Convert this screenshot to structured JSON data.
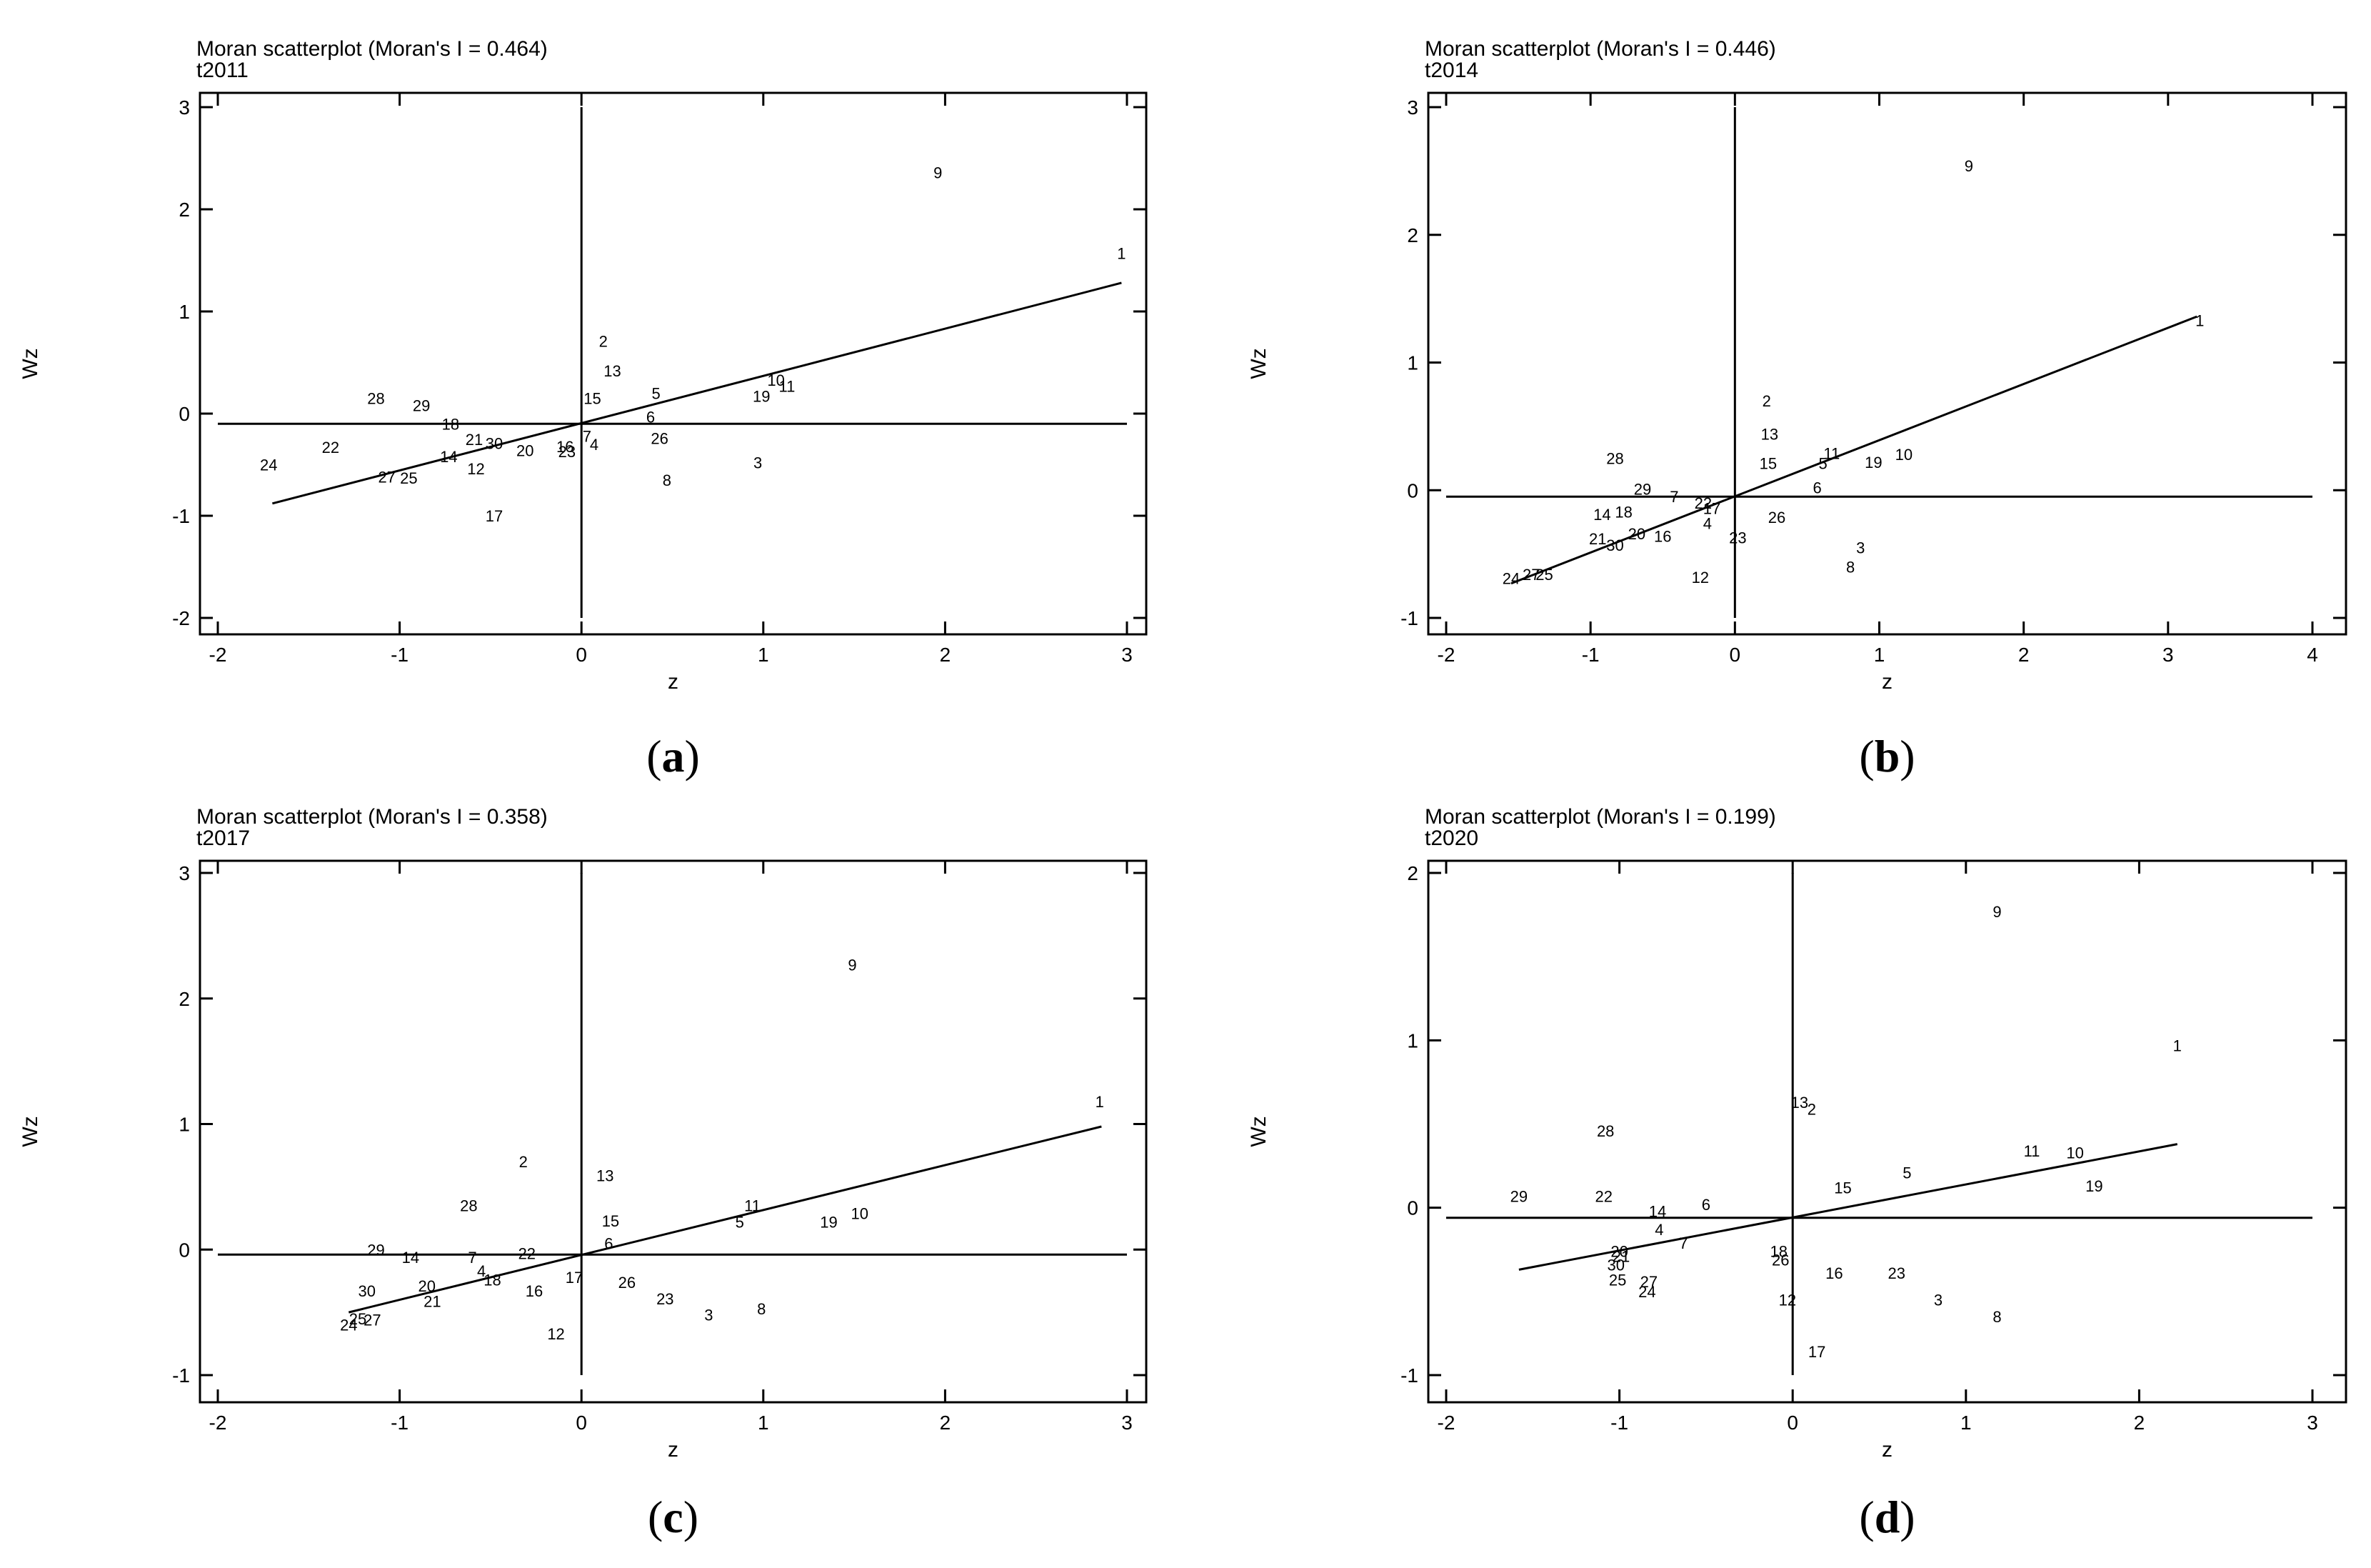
{
  "chart_data": [
    {
      "type": "scatter",
      "title": "Moran scatterplot (Moran's I = 0.464)",
      "subtitle": "t2011",
      "xlabel": "z",
      "ylabel": "Wz",
      "panel_label": "a",
      "xlim": [
        -2,
        3
      ],
      "ylim": [
        -2,
        3
      ],
      "xticks": [
        "-2",
        "-1",
        "0",
        "1",
        "2",
        "3"
      ],
      "yticks": [
        "-2",
        "-1",
        "0",
        "1",
        "2",
        "3"
      ],
      "mean_x": 0,
      "mean_y": -0.1,
      "fit_line": {
        "x": [
          -1.7,
          2.97
        ],
        "y": [
          -0.88,
          1.28
        ]
      },
      "points": [
        {
          "label": "1",
          "x": 2.97,
          "y": 1.57
        },
        {
          "label": "2",
          "x": 0.12,
          "y": 0.71
        },
        {
          "label": "3",
          "x": 0.97,
          "y": -0.48
        },
        {
          "label": "4",
          "x": 0.07,
          "y": -0.3
        },
        {
          "label": "5",
          "x": 0.41,
          "y": 0.2
        },
        {
          "label": "6",
          "x": 0.38,
          "y": -0.03
        },
        {
          "label": "7",
          "x": 0.03,
          "y": -0.22
        },
        {
          "label": "8",
          "x": 0.47,
          "y": -0.65
        },
        {
          "label": "9",
          "x": 1.96,
          "y": 2.36
        },
        {
          "label": "10",
          "x": 1.07,
          "y": 0.33
        },
        {
          "label": "11",
          "x": 1.13,
          "y": 0.27
        },
        {
          "label": "12",
          "x": -0.58,
          "y": -0.54
        },
        {
          "label": "13",
          "x": 0.17,
          "y": 0.42
        },
        {
          "label": "14",
          "x": -0.73,
          "y": -0.42
        },
        {
          "label": "15",
          "x": 0.06,
          "y": 0.15
        },
        {
          "label": "16",
          "x": -0.09,
          "y": -0.32
        },
        {
          "label": "17",
          "x": -0.48,
          "y": -1.0
        },
        {
          "label": "18",
          "x": -0.72,
          "y": -0.1
        },
        {
          "label": "19",
          "x": 0.99,
          "y": 0.17
        },
        {
          "label": "20",
          "x": -0.31,
          "y": -0.36
        },
        {
          "label": "21",
          "x": -0.59,
          "y": -0.25
        },
        {
          "label": "22",
          "x": -1.38,
          "y": -0.33
        },
        {
          "label": "23",
          "x": -0.08,
          "y": -0.37
        },
        {
          "label": "24",
          "x": -1.72,
          "y": -0.5
        },
        {
          "label": "25",
          "x": -0.95,
          "y": -0.63
        },
        {
          "label": "26",
          "x": 0.43,
          "y": -0.24
        },
        {
          "label": "27",
          "x": -1.07,
          "y": -0.62
        },
        {
          "label": "28",
          "x": -1.13,
          "y": 0.15
        },
        {
          "label": "29",
          "x": -0.88,
          "y": 0.08
        },
        {
          "label": "30",
          "x": -0.48,
          "y": -0.29
        }
      ]
    },
    {
      "type": "scatter",
      "title": "Moran scatterplot (Moran's I = 0.446)",
      "subtitle": "t2014",
      "xlabel": "z",
      "ylabel": "Wz",
      "panel_label": "b",
      "xlim": [
        -2,
        4
      ],
      "ylim": [
        -1,
        3
      ],
      "xticks": [
        "-2",
        "-1",
        "0",
        "1",
        "2",
        "3",
        "4"
      ],
      "yticks": [
        "-1",
        "0",
        "1",
        "2",
        "3"
      ],
      "mean_x": 0,
      "mean_y": -0.05,
      "fit_line": {
        "x": [
          -1.55,
          3.2
        ],
        "y": [
          -0.73,
          1.36
        ]
      },
      "points": [
        {
          "label": "1",
          "x": 3.22,
          "y": 1.33
        },
        {
          "label": "2",
          "x": 0.22,
          "y": 0.7
        },
        {
          "label": "3",
          "x": 0.87,
          "y": -0.45
        },
        {
          "label": "4",
          "x": -0.19,
          "y": -0.26
        },
        {
          "label": "5",
          "x": 0.61,
          "y": 0.21
        },
        {
          "label": "6",
          "x": 0.57,
          "y": 0.02
        },
        {
          "label": "7",
          "x": -0.42,
          "y": -0.05
        },
        {
          "label": "8",
          "x": 0.8,
          "y": -0.6
        },
        {
          "label": "9",
          "x": 1.62,
          "y": 2.54
        },
        {
          "label": "10",
          "x": 1.17,
          "y": 0.28
        },
        {
          "label": "11",
          "x": 0.67,
          "y": 0.29
        },
        {
          "label": "12",
          "x": -0.24,
          "y": -0.68
        },
        {
          "label": "13",
          "x": 0.24,
          "y": 0.44
        },
        {
          "label": "14",
          "x": -0.92,
          "y": -0.19
        },
        {
          "label": "15",
          "x": 0.23,
          "y": 0.21
        },
        {
          "label": "16",
          "x": -0.5,
          "y": -0.36
        },
        {
          "label": "17",
          "x": -0.16,
          "y": -0.14
        },
        {
          "label": "18",
          "x": -0.77,
          "y": -0.17
        },
        {
          "label": "19",
          "x": 0.96,
          "y": 0.22
        },
        {
          "label": "20",
          "x": -0.68,
          "y": -0.34
        },
        {
          "label": "21",
          "x": -0.95,
          "y": -0.38
        },
        {
          "label": "22",
          "x": -0.22,
          "y": -0.1
        },
        {
          "label": "23",
          "x": 0.02,
          "y": -0.37
        },
        {
          "label": "24",
          "x": -1.55,
          "y": -0.69
        },
        {
          "label": "25",
          "x": -1.32,
          "y": -0.66
        },
        {
          "label": "26",
          "x": 0.29,
          "y": -0.21
        },
        {
          "label": "27",
          "x": -1.41,
          "y": -0.66
        },
        {
          "label": "28",
          "x": -0.83,
          "y": 0.25
        },
        {
          "label": "29",
          "x": -0.64,
          "y": 0.01
        },
        {
          "label": "30",
          "x": -0.83,
          "y": -0.43
        }
      ]
    },
    {
      "type": "scatter",
      "title": "Moran scatterplot (Moran's I = 0.358)",
      "subtitle": "t2017",
      "xlabel": "z",
      "ylabel": "Wz",
      "panel_label": "c",
      "xlim": [
        -2,
        3
      ],
      "ylim": [
        -1,
        3
      ],
      "xticks": [
        "-2",
        "-1",
        "0",
        "1",
        "2",
        "3"
      ],
      "yticks": [
        "-1",
        "0",
        "1",
        "2",
        "3"
      ],
      "mean_x": 0,
      "mean_y": -0.04,
      "fit_line": {
        "x": [
          -1.28,
          2.86
        ],
        "y": [
          -0.5,
          0.98
        ]
      },
      "points": [
        {
          "label": "1",
          "x": 2.85,
          "y": 1.18
        },
        {
          "label": "2",
          "x": -0.32,
          "y": 0.7
        },
        {
          "label": "3",
          "x": 0.7,
          "y": -0.52
        },
        {
          "label": "4",
          "x": -0.55,
          "y": -0.17
        },
        {
          "label": "5",
          "x": 0.87,
          "y": 0.22
        },
        {
          "label": "6",
          "x": 0.15,
          "y": 0.05
        },
        {
          "label": "7",
          "x": -0.6,
          "y": -0.06
        },
        {
          "label": "8",
          "x": 0.99,
          "y": -0.47
        },
        {
          "label": "9",
          "x": 1.49,
          "y": 2.27
        },
        {
          "label": "10",
          "x": 1.53,
          "y": 0.29
        },
        {
          "label": "11",
          "x": 0.94,
          "y": 0.35
        },
        {
          "label": "12",
          "x": -0.14,
          "y": -0.67
        },
        {
          "label": "13",
          "x": 0.13,
          "y": 0.59
        },
        {
          "label": "14",
          "x": -0.94,
          "y": -0.06
        },
        {
          "label": "15",
          "x": 0.16,
          "y": 0.23
        },
        {
          "label": "16",
          "x": -0.26,
          "y": -0.33
        },
        {
          "label": "17",
          "x": -0.04,
          "y": -0.22
        },
        {
          "label": "18",
          "x": -0.49,
          "y": -0.24
        },
        {
          "label": "19",
          "x": 1.36,
          "y": 0.22
        },
        {
          "label": "20",
          "x": -0.85,
          "y": -0.29
        },
        {
          "label": "21",
          "x": -0.82,
          "y": -0.41
        },
        {
          "label": "22",
          "x": -0.3,
          "y": -0.03
        },
        {
          "label": "23",
          "x": 0.46,
          "y": -0.39
        },
        {
          "label": "24",
          "x": -1.28,
          "y": -0.6
        },
        {
          "label": "25",
          "x": -1.23,
          "y": -0.55
        },
        {
          "label": "26",
          "x": 0.25,
          "y": -0.26
        },
        {
          "label": "27",
          "x": -1.15,
          "y": -0.56
        },
        {
          "label": "28",
          "x": -0.62,
          "y": 0.35
        },
        {
          "label": "29",
          "x": -1.13,
          "y": 0.0
        },
        {
          "label": "30",
          "x": -1.18,
          "y": -0.33
        }
      ]
    },
    {
      "type": "scatter",
      "title": "Moran scatterplot (Moran's I = 0.199)",
      "subtitle": "t2020",
      "xlabel": "z",
      "ylabel": "Wz",
      "panel_label": "d",
      "xlim": [
        -2,
        3
      ],
      "ylim": [
        -1,
        2
      ],
      "xticks": [
        "-2",
        "-1",
        "0",
        "1",
        "2",
        "3"
      ],
      "yticks": [
        "-1",
        "0",
        "1",
        "2"
      ],
      "mean_x": 0,
      "mean_y": -0.06,
      "fit_line": {
        "x": [
          -1.58,
          2.22
        ],
        "y": [
          -0.37,
          0.38
        ]
      },
      "points": [
        {
          "label": "1",
          "x": 2.22,
          "y": 0.97
        },
        {
          "label": "2",
          "x": 0.11,
          "y": 0.59
        },
        {
          "label": "3",
          "x": 0.84,
          "y": -0.55
        },
        {
          "label": "4",
          "x": -0.77,
          "y": -0.13
        },
        {
          "label": "5",
          "x": 0.66,
          "y": 0.21
        },
        {
          "label": "6",
          "x": -0.5,
          "y": 0.02
        },
        {
          "label": "7",
          "x": -0.63,
          "y": -0.21
        },
        {
          "label": "8",
          "x": 1.18,
          "y": -0.65
        },
        {
          "label": "9",
          "x": 1.18,
          "y": 1.77
        },
        {
          "label": "10",
          "x": 1.63,
          "y": 0.33
        },
        {
          "label": "11",
          "x": 1.38,
          "y": 0.34
        },
        {
          "label": "12",
          "x": -0.03,
          "y": -0.55
        },
        {
          "label": "13",
          "x": 0.04,
          "y": 0.63
        },
        {
          "label": "14",
          "x": -0.78,
          "y": -0.02
        },
        {
          "label": "15",
          "x": 0.29,
          "y": 0.12
        },
        {
          "label": "16",
          "x": 0.24,
          "y": -0.39
        },
        {
          "label": "17",
          "x": 0.14,
          "y": -0.86
        },
        {
          "label": "18",
          "x": -0.08,
          "y": -0.26
        },
        {
          "label": "19",
          "x": 1.74,
          "y": 0.13
        },
        {
          "label": "20",
          "x": -1.0,
          "y": -0.26
        },
        {
          "label": "21",
          "x": -0.99,
          "y": -0.29
        },
        {
          "label": "22",
          "x": -1.09,
          "y": 0.07
        },
        {
          "label": "23",
          "x": 0.6,
          "y": -0.39
        },
        {
          "label": "24",
          "x": -0.84,
          "y": -0.5
        },
        {
          "label": "25",
          "x": -1.01,
          "y": -0.43
        },
        {
          "label": "26",
          "x": -0.07,
          "y": -0.31
        },
        {
          "label": "27",
          "x": -0.83,
          "y": -0.44
        },
        {
          "label": "28",
          "x": -1.08,
          "y": 0.46
        },
        {
          "label": "29",
          "x": -1.58,
          "y": 0.07
        },
        {
          "label": "30",
          "x": -1.02,
          "y": -0.34
        }
      ]
    }
  ]
}
